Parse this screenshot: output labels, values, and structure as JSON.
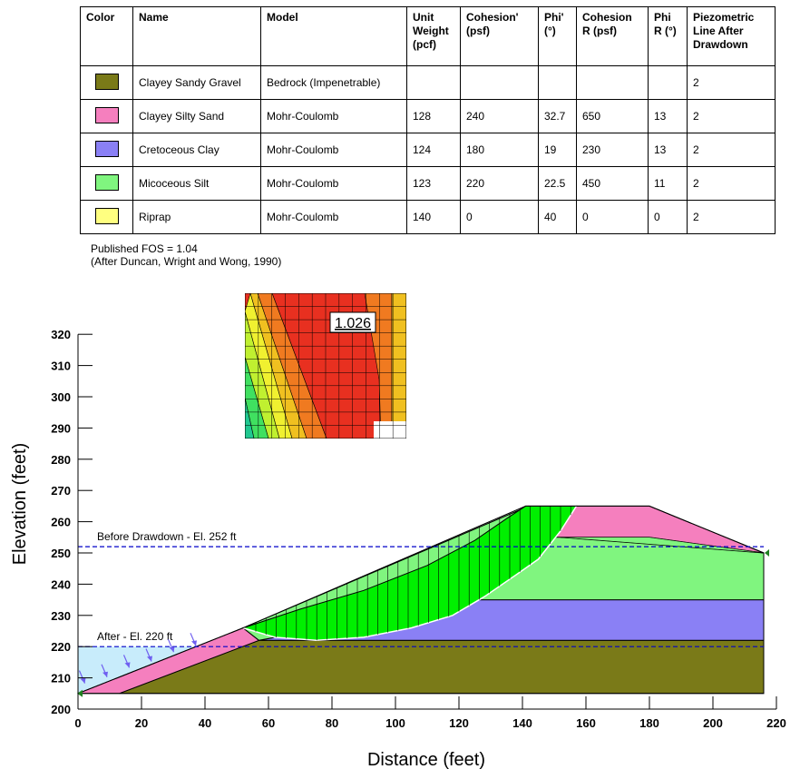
{
  "table": {
    "headers": [
      "Color",
      "Name",
      "Model",
      "Unit Weight (pcf)",
      "Cohesion' (psf)",
      "Phi' (°)",
      "Cohesion R (psf)",
      "Phi R (°)",
      "Piezometric Line After Drawdown"
    ],
    "rows": [
      {
        "color": "#7a7a18",
        "name": "Clayey Sandy Gravel",
        "model": "Bedrock (Impenetrable)",
        "unit_weight": "",
        "cohesion": "",
        "phi": "",
        "cohesion_r": "",
        "phi_r": "",
        "piezo": "2"
      },
      {
        "color": "#f57fbe",
        "name": "Clayey Silty Sand",
        "model": "Mohr-Coulomb",
        "unit_weight": "128",
        "cohesion": "240",
        "phi": "32.7",
        "cohesion_r": "650",
        "phi_r": "13",
        "piezo": "2"
      },
      {
        "color": "#8a80f5",
        "name": "Cretoceous Clay",
        "model": "Mohr-Coulomb",
        "unit_weight": "124",
        "cohesion": "180",
        "phi": "19",
        "cohesion_r": "230",
        "phi_r": "13",
        "piezo": "2"
      },
      {
        "color": "#80f57f",
        "name": "Micoceous Silt",
        "model": "Mohr-Coulomb",
        "unit_weight": "123",
        "cohesion": "220",
        "phi": "22.5",
        "cohesion_r": "450",
        "phi_r": "11",
        "piezo": "2"
      },
      {
        "color": "#ffff80",
        "name": "Riprap",
        "model": "Mohr-Coulomb",
        "unit_weight": "140",
        "cohesion": "0",
        "phi": "40",
        "cohesion_r": "0",
        "phi_r": "0",
        "piezo": "2"
      }
    ]
  },
  "notes": {
    "published_fos": "Published FOS = 1.04",
    "reference": "(After Duncan, Wright and Wong, 1990)"
  },
  "chart": {
    "xlabel": "Distance (feet)",
    "ylabel": "Elevation (feet)",
    "xlim": [
      0,
      220
    ],
    "ylim": [
      200,
      320
    ],
    "xticks": [
      0,
      20,
      40,
      60,
      80,
      100,
      120,
      140,
      160,
      180,
      200,
      220
    ],
    "yticks": [
      200,
      210,
      220,
      230,
      240,
      250,
      260,
      270,
      280,
      290,
      300,
      310,
      320
    ],
    "fos_label": "1.026",
    "water_before": {
      "label": "Before Drawdown - El. 252 ft",
      "elevation": 252
    },
    "water_after": {
      "label": "After - El. 220 ft",
      "elevation": 220
    },
    "colors": {
      "bedrock": "#7a7a18",
      "sand": "#f57fbe",
      "clay": "#8a80f5",
      "silt": "#80f57f",
      "slip_mass": "#00f000",
      "riprap": "#ffff80",
      "reservoir": "#c8ecfb",
      "water_line": "#0000c8",
      "load_arrow": "#6f5ff0"
    },
    "fos_grid_colors": [
      "#e83020",
      "#f07a20",
      "#f0c020",
      "#f0f030",
      "#c0f030",
      "#40e060",
      "#20c890"
    ]
  }
}
